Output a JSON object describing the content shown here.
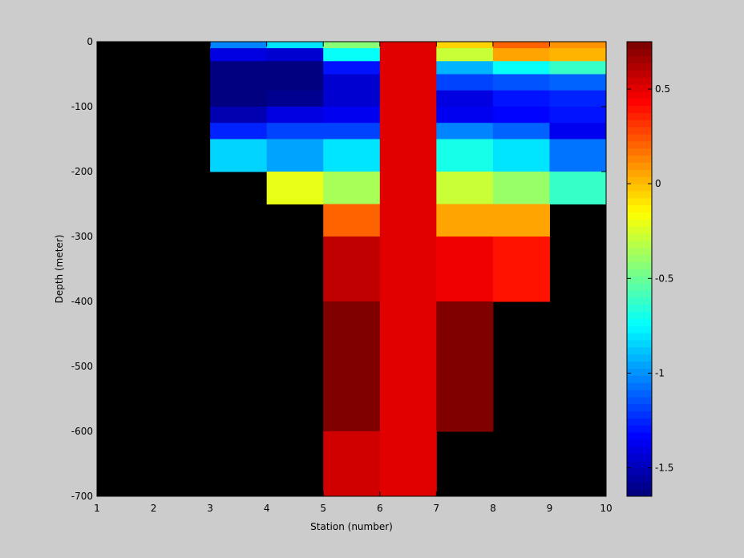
{
  "chart_data": {
    "type": "heatmap",
    "title": "",
    "xlabel": "Station (number)",
    "ylabel": "Depth (meter)",
    "xlim": [
      1,
      10
    ],
    "ylim": [
      -700,
      0
    ],
    "xticks": [
      1,
      2,
      3,
      4,
      5,
      6,
      7,
      8,
      9,
      10
    ],
    "yticks": [
      0,
      -100,
      -200,
      -300,
      -400,
      -500,
      -600,
      -700
    ],
    "colorbar": {
      "colormap": "jet",
      "clim": [
        -1.65,
        0.75
      ],
      "levels": 64,
      "ticks": [
        0.5,
        0,
        -0.5,
        -1,
        -1.5
      ],
      "mid_color": "#ffffff"
    },
    "nodata_color": "#000000",
    "cells": [
      {
        "x": [
          3,
          4
        ],
        "y": [
          0,
          -10
        ],
        "value": -1.02
      },
      {
        "x": [
          3,
          4
        ],
        "y": [
          -10,
          -30
        ],
        "value": -1.4
      },
      {
        "x": [
          3,
          4
        ],
        "y": [
          -30,
          -100
        ],
        "value": -1.62
      },
      {
        "x": [
          3,
          4
        ],
        "y": [
          -100,
          -125
        ],
        "value": -1.5
      },
      {
        "x": [
          3,
          4
        ],
        "y": [
          -125,
          -150
        ],
        "value": -1.25
      },
      {
        "x": [
          3,
          4
        ],
        "y": [
          -150,
          -200
        ],
        "value": -0.85
      },
      {
        "x": [
          4,
          5
        ],
        "y": [
          0,
          -10
        ],
        "value": -0.8
      },
      {
        "x": [
          4,
          5
        ],
        "y": [
          -10,
          -30
        ],
        "value": -1.45
      },
      {
        "x": [
          4,
          5
        ],
        "y": [
          -30,
          -75
        ],
        "value": -1.62
      },
      {
        "x": [
          4,
          5
        ],
        "y": [
          -75,
          -100
        ],
        "value": -1.58
      },
      {
        "x": [
          4,
          5
        ],
        "y": [
          -100,
          -125
        ],
        "value": -1.4
      },
      {
        "x": [
          4,
          5
        ],
        "y": [
          -125,
          -150
        ],
        "value": -1.2
      },
      {
        "x": [
          4,
          5
        ],
        "y": [
          -150,
          -200
        ],
        "value": -0.95
      },
      {
        "x": [
          4,
          5
        ],
        "y": [
          -200,
          -250
        ],
        "value": -0.2
      },
      {
        "x": [
          5,
          6
        ],
        "y": [
          0,
          -10
        ],
        "value": -0.45
      },
      {
        "x": [
          5,
          6
        ],
        "y": [
          -10,
          -30
        ],
        "value": -0.72
      },
      {
        "x": [
          5,
          6
        ],
        "y": [
          -30,
          -50
        ],
        "value": -1.28
      },
      {
        "x": [
          5,
          6
        ],
        "y": [
          -50,
          -100
        ],
        "value": -1.45
      },
      {
        "x": [
          5,
          6
        ],
        "y": [
          -100,
          -125
        ],
        "value": -1.35
      },
      {
        "x": [
          5,
          6
        ],
        "y": [
          -125,
          -150
        ],
        "value": -1.2
      },
      {
        "x": [
          5,
          6
        ],
        "y": [
          -150,
          -200
        ],
        "value": -0.8
      },
      {
        "x": [
          5,
          6
        ],
        "y": [
          -200,
          -250
        ],
        "value": -0.35
      },
      {
        "x": [
          5,
          6
        ],
        "y": [
          -250,
          -300
        ],
        "value": 0.2
      },
      {
        "x": [
          5,
          6
        ],
        "y": [
          -300,
          -400
        ],
        "value": 0.58
      },
      {
        "x": [
          5,
          6
        ],
        "y": [
          -400,
          -600
        ],
        "value": 0.75
      },
      {
        "x": [
          5,
          6
        ],
        "y": [
          -600,
          -700
        ],
        "value": 0.55
      },
      {
        "x": [
          6,
          7
        ],
        "y": [
          0,
          -700
        ],
        "value": 0.52
      },
      {
        "x": [
          7,
          8
        ],
        "y": [
          0,
          -10
        ],
        "value": -0.05
      },
      {
        "x": [
          7,
          8
        ],
        "y": [
          -10,
          -30
        ],
        "value": -0.3
      },
      {
        "x": [
          7,
          8
        ],
        "y": [
          -30,
          -50
        ],
        "value": -0.9
      },
      {
        "x": [
          7,
          8
        ],
        "y": [
          -50,
          -75
        ],
        "value": -1.2
      },
      {
        "x": [
          7,
          8
        ],
        "y": [
          -75,
          -100
        ],
        "value": -1.4
      },
      {
        "x": [
          7,
          8
        ],
        "y": [
          -100,
          -125
        ],
        "value": -1.35
      },
      {
        "x": [
          7,
          8
        ],
        "y": [
          -125,
          -150
        ],
        "value": -1.02
      },
      {
        "x": [
          7,
          8
        ],
        "y": [
          -150,
          -200
        ],
        "value": -0.68
      },
      {
        "x": [
          7,
          8
        ],
        "y": [
          -200,
          -250
        ],
        "value": -0.3
      },
      {
        "x": [
          7,
          8
        ],
        "y": [
          -250,
          -300
        ],
        "value": 0.05
      },
      {
        "x": [
          7,
          8
        ],
        "y": [
          -300,
          -400
        ],
        "value": 0.45
      },
      {
        "x": [
          7,
          8
        ],
        "y": [
          -400,
          -600
        ],
        "value": 0.75
      },
      {
        "x": [
          8,
          9
        ],
        "y": [
          0,
          -10
        ],
        "value": 0.2
      },
      {
        "x": [
          8,
          9
        ],
        "y": [
          -10,
          -30
        ],
        "value": 0.05
      },
      {
        "x": [
          8,
          9
        ],
        "y": [
          -30,
          -50
        ],
        "value": -0.72
      },
      {
        "x": [
          8,
          9
        ],
        "y": [
          -50,
          -75
        ],
        "value": -1.15
      },
      {
        "x": [
          8,
          9
        ],
        "y": [
          -75,
          -100
        ],
        "value": -1.3
      },
      {
        "x": [
          8,
          9
        ],
        "y": [
          -100,
          -125
        ],
        "value": -1.32
      },
      {
        "x": [
          8,
          9
        ],
        "y": [
          -125,
          -150
        ],
        "value": -1.1
      },
      {
        "x": [
          8,
          9
        ],
        "y": [
          -150,
          -200
        ],
        "value": -0.82
      },
      {
        "x": [
          8,
          9
        ],
        "y": [
          -200,
          -250
        ],
        "value": -0.4
      },
      {
        "x": [
          8,
          9
        ],
        "y": [
          -250,
          -300
        ],
        "value": 0.05
      },
      {
        "x": [
          8,
          9
        ],
        "y": [
          -300,
          -400
        ],
        "value": 0.4
      },
      {
        "x": [
          9,
          10
        ],
        "y": [
          0,
          -10
        ],
        "value": 0.1
      },
      {
        "x": [
          9,
          10
        ],
        "y": [
          -10,
          -30
        ],
        "value": 0.0
      },
      {
        "x": [
          9,
          10
        ],
        "y": [
          -30,
          -50
        ],
        "value": -0.62
      },
      {
        "x": [
          9,
          10
        ],
        "y": [
          -50,
          -75
        ],
        "value": -1.12
      },
      {
        "x": [
          9,
          10
        ],
        "y": [
          -75,
          -100
        ],
        "value": -1.25
      },
      {
        "x": [
          9,
          10
        ],
        "y": [
          -100,
          -125
        ],
        "value": -1.28
      },
      {
        "x": [
          9,
          10
        ],
        "y": [
          -125,
          -150
        ],
        "value": -1.35
      },
      {
        "x": [
          9,
          10
        ],
        "y": [
          -150,
          -200
        ],
        "value": -1.05
      },
      {
        "x": [
          9,
          10
        ],
        "y": [
          -200,
          -250
        ],
        "value": -0.62
      }
    ]
  }
}
